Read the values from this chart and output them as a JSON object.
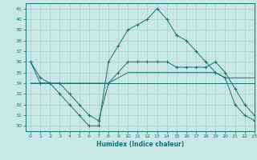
{
  "xlabel": "Humidex (Indice chaleur)",
  "xlim": [
    -0.5,
    23
  ],
  "ylim": [
    29.5,
    41.5
  ],
  "yticks": [
    30,
    31,
    32,
    33,
    34,
    35,
    36,
    37,
    38,
    39,
    40,
    41
  ],
  "xticks": [
    0,
    1,
    2,
    3,
    4,
    5,
    6,
    7,
    8,
    9,
    10,
    11,
    12,
    13,
    14,
    15,
    16,
    17,
    18,
    19,
    20,
    21,
    22,
    23
  ],
  "bg_color": "#c8e8e8",
  "line_color": "#1a7070",
  "grid_color": "#a8d0d0",
  "series": [
    {
      "x": [
        0,
        1,
        2,
        3,
        4,
        5,
        6,
        7,
        8,
        9,
        10,
        11,
        12,
        13,
        14,
        15,
        16,
        17,
        18,
        19,
        20,
        21,
        22,
        23
      ],
      "y": [
        36,
        34,
        34,
        33,
        32,
        31,
        30,
        30,
        36,
        37.5,
        39,
        39.5,
        40,
        41,
        40,
        38.5,
        38,
        37,
        36,
        35,
        34.5,
        32,
        31,
        30.5
      ],
      "marker": "+"
    },
    {
      "x": [
        0,
        1,
        2,
        3,
        4,
        5,
        6,
        7,
        8,
        9,
        10,
        11,
        12,
        13,
        14,
        15,
        16,
        17,
        18,
        19,
        20,
        21,
        22,
        23
      ],
      "y": [
        36,
        34.5,
        34,
        34,
        33,
        32,
        31,
        30.5,
        34,
        35,
        36,
        36,
        36,
        36,
        36,
        35.5,
        35.5,
        35.5,
        35.5,
        36,
        35,
        33.5,
        32,
        31
      ],
      "marker": "+"
    },
    {
      "x": [
        0,
        1,
        2,
        3,
        4,
        5,
        6,
        7,
        8,
        9,
        10,
        11,
        12,
        13,
        14,
        15,
        16,
        17,
        18,
        19,
        20,
        21,
        22,
        23
      ],
      "y": [
        34,
        34,
        34,
        34,
        34,
        34,
        34,
        34,
        34,
        34.5,
        35,
        35,
        35,
        35,
        35,
        35,
        35,
        35,
        35,
        35,
        34.5,
        34.5,
        34.5,
        34.5
      ],
      "marker": null
    },
    {
      "x": [
        0,
        1,
        2,
        3,
        4,
        5,
        6,
        7,
        8,
        9,
        10,
        11,
        12,
        13,
        14,
        15,
        16,
        17,
        18,
        19,
        20,
        21,
        22,
        23
      ],
      "y": [
        34,
        34,
        34,
        34,
        34,
        34,
        34,
        34,
        34,
        34,
        34,
        34,
        34,
        34,
        34,
        34,
        34,
        34,
        34,
        34,
        34,
        34,
        34,
        34
      ],
      "marker": null
    }
  ]
}
